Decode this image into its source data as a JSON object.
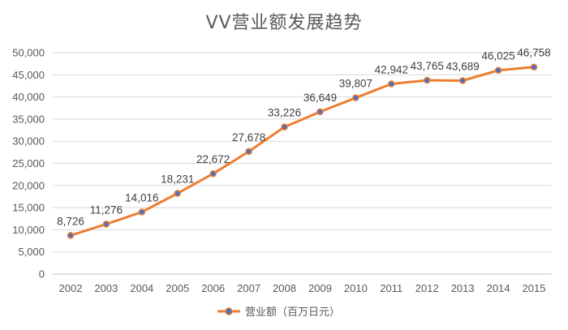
{
  "chart_data": {
    "type": "line",
    "title": "VV营业额发展趋势",
    "xlabel": "",
    "ylabel": "",
    "categories": [
      "2002",
      "2003",
      "2004",
      "2005",
      "2006",
      "2007",
      "2008",
      "2009",
      "2010",
      "2011",
      "2012",
      "2013",
      "2014",
      "2015"
    ],
    "series": [
      {
        "name": "营业额（百万日元）",
        "values": [
          8726,
          11276,
          14016,
          18231,
          22672,
          27678,
          33226,
          36649,
          39807,
          42942,
          43765,
          43689,
          46025,
          46758
        ],
        "labels": [
          "8,726",
          "11,276",
          "14,016",
          "18,231",
          "22,672",
          "27,678",
          "33,226",
          "36,649",
          "39,807",
          "42,942",
          "43,765",
          "43,689",
          "46,025",
          "46,758"
        ]
      }
    ],
    "ylim": [
      0,
      50000
    ],
    "y_ticks": [
      0,
      5000,
      10000,
      15000,
      20000,
      25000,
      30000,
      35000,
      40000,
      45000,
      50000
    ],
    "y_tick_labels": [
      "0",
      "5,000",
      "10,000",
      "15,000",
      "20,000",
      "25,000",
      "30,000",
      "35,000",
      "40,000",
      "45,000",
      "50,000"
    ],
    "grid": true,
    "legend_position": "bottom",
    "colors": {
      "line": "#ED7D31",
      "marker": "#4472C4",
      "grid": "#D9D9D9",
      "axis": "#BFBFBF",
      "text": "#595959"
    }
  }
}
